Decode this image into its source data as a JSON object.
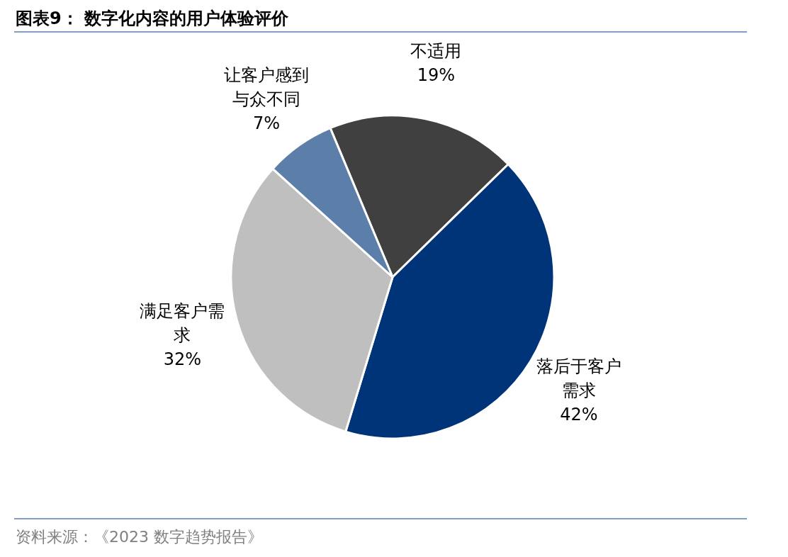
{
  "chart_data": {
    "type": "pie",
    "title": "图表9： 数字化内容的用户体验评价",
    "categories": [
      "不适用",
      "落后于客户需求",
      "满足客户需求",
      "让客户感到与众不同"
    ],
    "values": [
      19,
      42,
      32,
      7
    ],
    "colors": [
      "#404040",
      "#003478",
      "#bfbfbf",
      "#5b7fa8"
    ],
    "value_labels": [
      "19%",
      "42%",
      "32%",
      "7%"
    ],
    "annotations": [
      "资料来源：《2023 数字趋势报告》"
    ]
  }
}
